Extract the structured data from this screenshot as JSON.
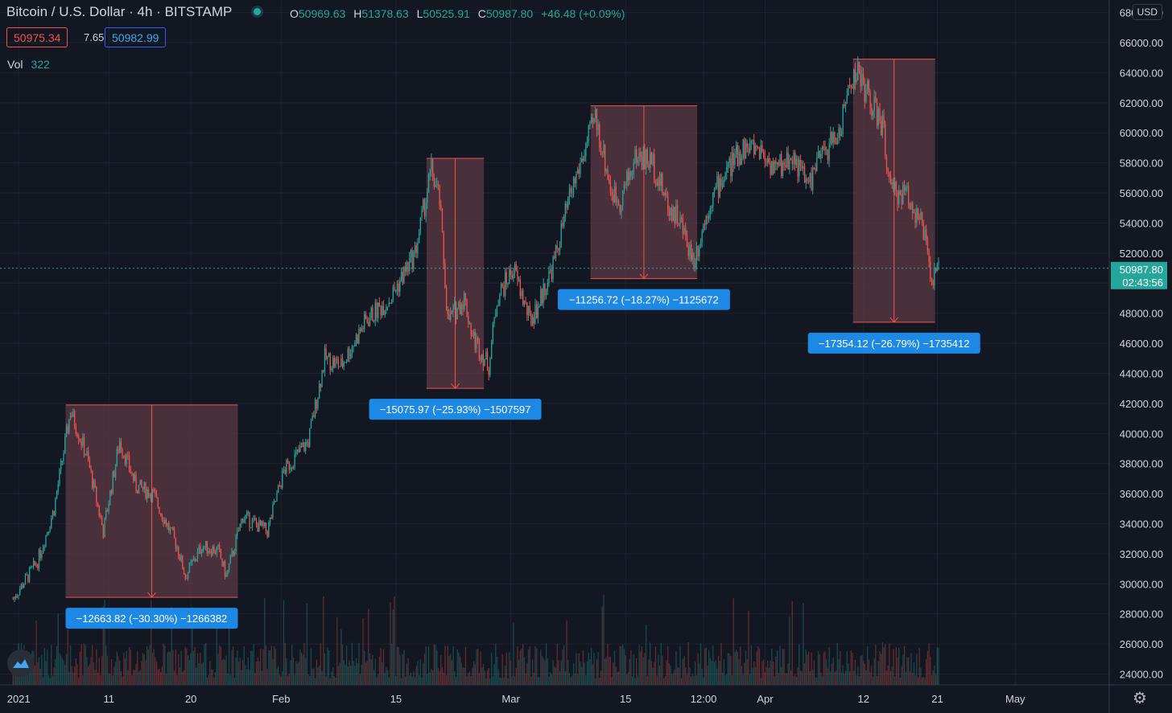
{
  "header": {
    "symbol_title": "Bitcoin / U.S. Dollar",
    "interval": "4h",
    "exchange": "BITSTAMP",
    "open_label": "O",
    "open": "50969.63",
    "high_label": "H",
    "high": "51378.63",
    "low_label": "L",
    "low": "50525.91",
    "close_label": "C",
    "close": "50987.80",
    "change": "+46.48 (+0.09%)"
  },
  "quote": {
    "bid": "50975.34",
    "spread": "7.65",
    "ask": "50982.99"
  },
  "volume": {
    "label": "Vol",
    "value": "322"
  },
  "currency_label": "USD",
  "price_tag": {
    "price": "50987.80",
    "countdown": "02:43:56"
  },
  "icons": [
    "tradingview-logo-icon",
    "settings-gear-icon"
  ],
  "colors": {
    "up": "#26a69a",
    "down": "#ef5350",
    "background": "#131722",
    "measure_fill": "#5d3a43",
    "measure_label": "#1e88e5"
  },
  "chart_data": {
    "type": "candlestick",
    "x_tick_labels": [
      "2021",
      "11",
      "20",
      "Feb",
      "15",
      "Mar",
      "15",
      "12:00",
      "Apr",
      "12",
      "21",
      "May"
    ],
    "y_tick_labels": [
      "24000.00",
      "26000.00",
      "28000.00",
      "30000.00",
      "32000.00",
      "34000.00",
      "36000.00",
      "38000.00",
      "40000.00",
      "42000.00",
      "44000.00",
      "46000.00",
      "48000.00",
      "50000.00",
      "52000.00",
      "54000.00",
      "56000.00",
      "58000.00",
      "60000.00",
      "62000.00",
      "64000.00",
      "66000.00",
      "68000.00"
    ],
    "ylim": [
      23200,
      68300
    ],
    "last_price": 50987.8,
    "price_path": [
      {
        "x": "2021-01-01",
        "close": 29000
      },
      {
        "x": "2021-01-04",
        "close": 31500
      },
      {
        "x": "2021-01-06",
        "close": 35000
      },
      {
        "x": "2021-01-08",
        "close": 41500
      },
      {
        "x": "2021-01-10",
        "close": 38500
      },
      {
        "x": "2021-01-12",
        "close": 33500
      },
      {
        "x": "2021-01-14",
        "close": 39500
      },
      {
        "x": "2021-01-16",
        "close": 36500
      },
      {
        "x": "2021-01-18",
        "close": 36000
      },
      {
        "x": "2021-01-21",
        "close": 32500
      },
      {
        "x": "2021-01-22",
        "close": 30500
      },
      {
        "x": "2021-01-24",
        "close": 32500
      },
      {
        "x": "2021-01-26",
        "close": 32200
      },
      {
        "x": "2021-01-27",
        "close": 30500
      },
      {
        "x": "2021-01-29",
        "close": 34500
      },
      {
        "x": "2021-02-01",
        "close": 33500
      },
      {
        "x": "2021-02-03",
        "close": 37500
      },
      {
        "x": "2021-02-06",
        "close": 39500
      },
      {
        "x": "2021-02-08",
        "close": 45000
      },
      {
        "x": "2021-02-10",
        "close": 44500
      },
      {
        "x": "2021-02-13",
        "close": 47500
      },
      {
        "x": "2021-02-16",
        "close": 49000
      },
      {
        "x": "2021-02-19",
        "close": 52000
      },
      {
        "x": "2021-02-21",
        "close": 57500
      },
      {
        "x": "2021-02-22",
        "close": 55500
      },
      {
        "x": "2021-02-23",
        "close": 47500
      },
      {
        "x": "2021-02-25",
        "close": 49000
      },
      {
        "x": "2021-02-26",
        "close": 46500
      },
      {
        "x": "2021-02-28",
        "close": 44500
      },
      {
        "x": "2021-03-01",
        "close": 49000
      },
      {
        "x": "2021-03-03",
        "close": 51000
      },
      {
        "x": "2021-03-05",
        "close": 47500
      },
      {
        "x": "2021-03-06",
        "close": 48500
      },
      {
        "x": "2021-03-08",
        "close": 51500
      },
      {
        "x": "2021-03-10",
        "close": 56000
      },
      {
        "x": "2021-03-13",
        "close": 61000
      },
      {
        "x": "2021-03-15",
        "close": 56000
      },
      {
        "x": "2021-03-16",
        "close": 55500
      },
      {
        "x": "2021-03-18",
        "close": 58500
      },
      {
        "x": "2021-03-20",
        "close": 58000
      },
      {
        "x": "2021-03-22",
        "close": 55000
      },
      {
        "x": "2021-03-23",
        "close": 54500
      },
      {
        "x": "2021-03-25",
        "close": 51500
      },
      {
        "x": "2021-03-27",
        "close": 55500
      },
      {
        "x": "2021-03-29",
        "close": 57500
      },
      {
        "x": "2021-03-31",
        "close": 59000
      },
      {
        "x": "2021-04-02",
        "close": 59000
      },
      {
        "x": "2021-04-04",
        "close": 57500
      },
      {
        "x": "2021-04-06",
        "close": 58500
      },
      {
        "x": "2021-04-08",
        "close": 56500
      },
      {
        "x": "2021-04-09",
        "close": 58000
      },
      {
        "x": "2021-04-11",
        "close": 59500
      },
      {
        "x": "2021-04-12",
        "close": 60500
      },
      {
        "x": "2021-04-13",
        "close": 63500
      },
      {
        "x": "2021-04-14",
        "close": 64000
      },
      {
        "x": "2021-04-16",
        "close": 61500
      },
      {
        "x": "2021-04-17",
        "close": 60500
      },
      {
        "x": "2021-04-18",
        "close": 56000
      },
      {
        "x": "2021-04-20",
        "close": 56000
      },
      {
        "x": "2021-04-22",
        "close": 53500
      },
      {
        "x": "2021-04-23",
        "close": 50000
      },
      {
        "x": "2021-04-24",
        "close": 50987.8
      }
    ],
    "measurements": [
      {
        "start": "2021-01-08",
        "end": "2021-01-29",
        "from": 41900,
        "to": 29100,
        "label": "−12663.82 (−30.30%) −1266382"
      },
      {
        "start": "2021-02-21",
        "end": "2021-02-28",
        "from": 58300,
        "to": 43000,
        "label": "−15075.97 (−25.93%) −1507597"
      },
      {
        "start": "2021-03-13",
        "end": "2021-03-26",
        "from": 61800,
        "to": 50300,
        "label": "−11256.72 (−18.27%) −1125672"
      },
      {
        "start": "2021-04-14",
        "end": "2021-04-24",
        "from": 64900,
        "to": 47400,
        "label": "−17354.12 (−26.79%) −1735412"
      }
    ]
  }
}
